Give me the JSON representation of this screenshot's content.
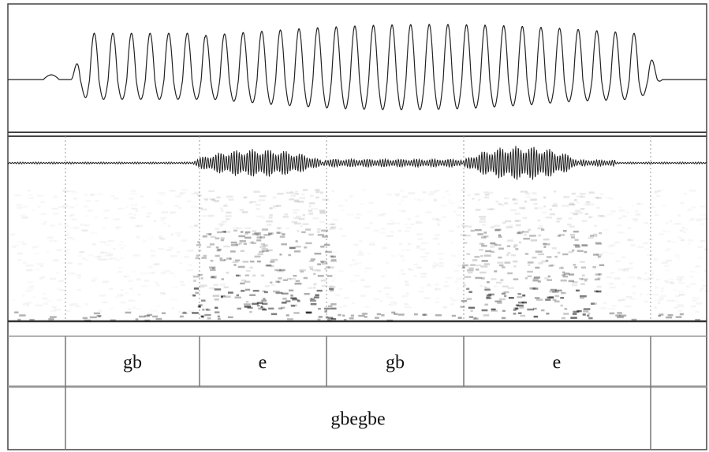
{
  "tiers": [
    {
      "intervals": [
        "gb",
        "e",
        "gb",
        "e"
      ]
    },
    {
      "intervals": [
        "gbegbe"
      ]
    }
  ]
}
